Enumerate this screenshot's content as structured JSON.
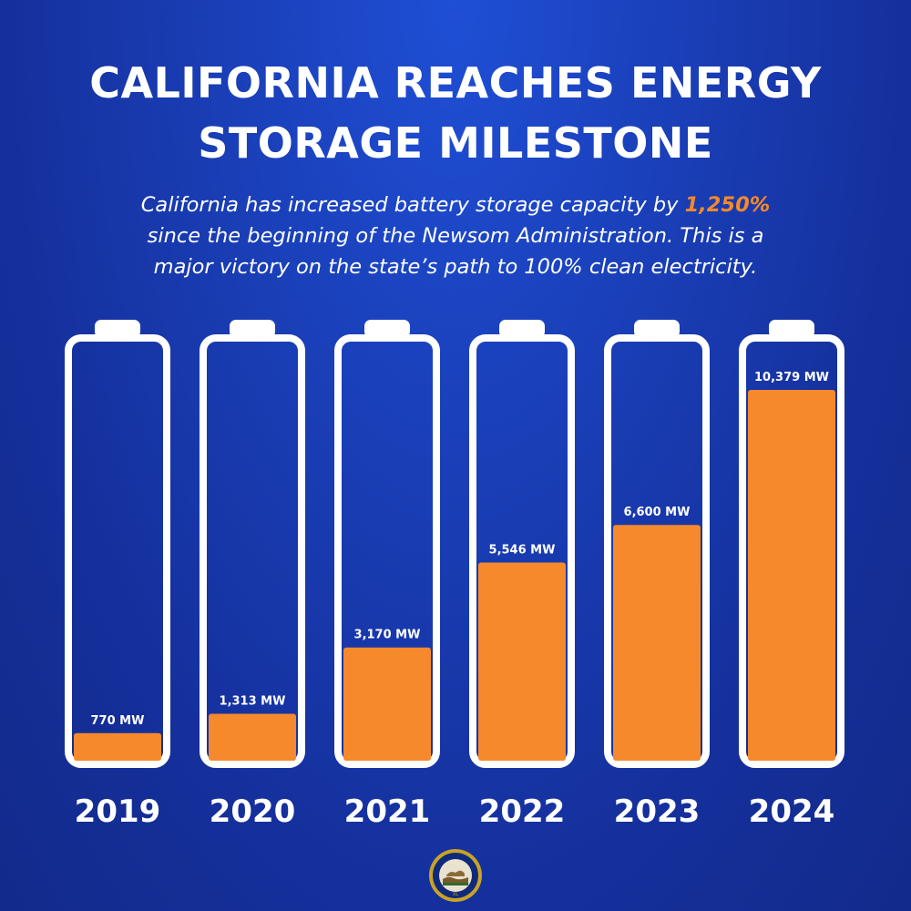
{
  "headline": {
    "line1": "CALIFORNIA REACHES ENERGY",
    "line2": "STORAGE MILESTONE"
  },
  "subtitle": {
    "line1_before": "California has increased battery storage capacity by ",
    "highlight": "1,250%",
    "line2": "since the beginning of the Newsom Administration. This is a",
    "line3": "major victory on the state’s path to 100% clean electricity."
  },
  "colors": {
    "background": "#1a3fb8",
    "battery_outline": "#ffffff",
    "fill": "#f5892b",
    "text": "#ffffff"
  },
  "chart_data": {
    "type": "bar",
    "categories": [
      "2019",
      "2020",
      "2021",
      "2022",
      "2023",
      "2024"
    ],
    "values": [
      770,
      1313,
      3170,
      5546,
      6600,
      10379
    ],
    "value_labels": [
      "770 MW",
      "1,313 MW",
      "3,170 MW",
      "5,546 MW",
      "6,600 MW",
      "10,379 MW"
    ],
    "unit": "MW",
    "ylim": [
      0,
      11000
    ],
    "title": "CALIFORNIA REACHES ENERGY STORAGE MILESTONE",
    "xlabel": "",
    "ylabel": "",
    "grid": false,
    "legend": "none",
    "mark_style": "battery"
  }
}
